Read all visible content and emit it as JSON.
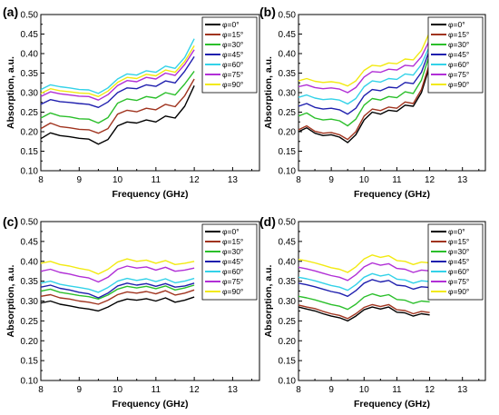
{
  "chart_data": [
    {
      "id": "panel-a",
      "panel_label": "(a)",
      "type": "line",
      "xlabel": "Frequency (GHz)",
      "ylabel": "Absorption, a.u.",
      "xlim": [
        8,
        13.7
      ],
      "ylim": [
        0.1,
        0.5
      ],
      "xticks": [
        "8",
        "9",
        "10",
        "11",
        "12",
        "13"
      ],
      "yticks": [
        "0.10",
        "0.15",
        "0.20",
        "0.25",
        "0.30",
        "0.35",
        "0.40",
        "0.45",
        "0.50"
      ],
      "legend_position": "top-right",
      "x": [
        8.0,
        8.25,
        8.5,
        8.75,
        9.0,
        9.25,
        9.5,
        9.75,
        10.0,
        10.25,
        10.5,
        10.75,
        11.0,
        11.25,
        11.5,
        11.75,
        12.0
      ],
      "series": [
        {
          "name": "φ=0°",
          "color": "#000000",
          "values": [
            0.182,
            0.197,
            0.19,
            0.187,
            0.183,
            0.181,
            0.168,
            0.18,
            0.215,
            0.225,
            0.222,
            0.23,
            0.225,
            0.24,
            0.235,
            0.265,
            0.318
          ]
        },
        {
          "name": "φ=15°",
          "color": "#a0341f",
          "values": [
            0.208,
            0.222,
            0.213,
            0.21,
            0.206,
            0.205,
            0.196,
            0.208,
            0.245,
            0.255,
            0.251,
            0.26,
            0.256,
            0.27,
            0.264,
            0.292,
            0.335
          ]
        },
        {
          "name": "φ=30°",
          "color": "#2bbf2b",
          "values": [
            0.235,
            0.248,
            0.24,
            0.238,
            0.233,
            0.232,
            0.222,
            0.236,
            0.273,
            0.284,
            0.28,
            0.29,
            0.286,
            0.3,
            0.294,
            0.322,
            0.355
          ]
        },
        {
          "name": "φ=45°",
          "color": "#1f1fae",
          "values": [
            0.27,
            0.282,
            0.277,
            0.275,
            0.272,
            0.27,
            0.262,
            0.276,
            0.3,
            0.312,
            0.31,
            0.32,
            0.316,
            0.33,
            0.325,
            0.355,
            0.392
          ]
        },
        {
          "name": "φ=60°",
          "color": "#33d2e8",
          "values": [
            0.308,
            0.32,
            0.315,
            0.312,
            0.308,
            0.307,
            0.298,
            0.312,
            0.335,
            0.348,
            0.345,
            0.356,
            0.352,
            0.368,
            0.362,
            0.39,
            0.438
          ]
        },
        {
          "name": "φ=75°",
          "color": "#b12fd6",
          "values": [
            0.29,
            0.302,
            0.297,
            0.294,
            0.291,
            0.29,
            0.281,
            0.295,
            0.318,
            0.331,
            0.328,
            0.339,
            0.335,
            0.35,
            0.344,
            0.372,
            0.41
          ]
        },
        {
          "name": "φ=90°",
          "color": "#f2ea12",
          "values": [
            0.298,
            0.31,
            0.305,
            0.302,
            0.299,
            0.298,
            0.29,
            0.304,
            0.326,
            0.339,
            0.336,
            0.347,
            0.343,
            0.358,
            0.352,
            0.38,
            0.42
          ]
        }
      ]
    },
    {
      "id": "panel-b",
      "panel_label": "(b)",
      "type": "line",
      "xlabel": "Frequency (GHz)",
      "ylabel": "Absorption, a.u.",
      "xlim": [
        8,
        13.7
      ],
      "ylim": [
        0.1,
        0.5
      ],
      "xticks": [
        "8",
        "9",
        "10",
        "11",
        "12",
        "13"
      ],
      "yticks": [
        "0.10",
        "0.15",
        "0.20",
        "0.25",
        "0.30",
        "0.35",
        "0.40",
        "0.45",
        "0.50"
      ],
      "legend_position": "top-right",
      "x": [
        8.0,
        8.25,
        8.5,
        8.75,
        9.0,
        9.25,
        9.5,
        9.75,
        10.0,
        10.25,
        10.5,
        10.75,
        11.0,
        11.25,
        11.5,
        11.75,
        12.0
      ],
      "series": [
        {
          "name": "φ=0°",
          "color": "#000000",
          "values": [
            0.2,
            0.21,
            0.196,
            0.19,
            0.192,
            0.186,
            0.172,
            0.192,
            0.23,
            0.25,
            0.245,
            0.255,
            0.252,
            0.268,
            0.265,
            0.3,
            0.368
          ]
        },
        {
          "name": "φ=15°",
          "color": "#a0341f",
          "values": [
            0.205,
            0.215,
            0.201,
            0.196,
            0.198,
            0.192,
            0.18,
            0.2,
            0.24,
            0.258,
            0.254,
            0.263,
            0.26,
            0.276,
            0.272,
            0.308,
            0.376
          ]
        },
        {
          "name": "φ=30°",
          "color": "#2bbf2b",
          "values": [
            0.24,
            0.248,
            0.235,
            0.23,
            0.232,
            0.228,
            0.215,
            0.232,
            0.268,
            0.285,
            0.281,
            0.29,
            0.287,
            0.302,
            0.298,
            0.332,
            0.398
          ]
        },
        {
          "name": "φ=45°",
          "color": "#1f1fae",
          "values": [
            0.265,
            0.272,
            0.262,
            0.258,
            0.26,
            0.256,
            0.245,
            0.26,
            0.292,
            0.308,
            0.305,
            0.314,
            0.312,
            0.326,
            0.323,
            0.352,
            0.41
          ]
        },
        {
          "name": "φ=60°",
          "color": "#33d2e8",
          "values": [
            0.288,
            0.294,
            0.286,
            0.282,
            0.284,
            0.281,
            0.271,
            0.285,
            0.315,
            0.33,
            0.327,
            0.336,
            0.334,
            0.348,
            0.345,
            0.372,
            0.42
          ]
        },
        {
          "name": "φ=75°",
          "color": "#b12fd6",
          "values": [
            0.315,
            0.32,
            0.313,
            0.31,
            0.312,
            0.309,
            0.3,
            0.313,
            0.34,
            0.354,
            0.352,
            0.36,
            0.358,
            0.37,
            0.368,
            0.392,
            0.435
          ]
        },
        {
          "name": "φ=90°",
          "color": "#f2ea12",
          "values": [
            0.33,
            0.336,
            0.329,
            0.326,
            0.328,
            0.325,
            0.317,
            0.33,
            0.357,
            0.37,
            0.368,
            0.376,
            0.374,
            0.386,
            0.384,
            0.408,
            0.455
          ]
        }
      ]
    },
    {
      "id": "panel-c",
      "panel_label": "(c)",
      "type": "line",
      "xlabel": "Frequency (GHz)",
      "ylabel": "Absorption, a.u.",
      "xlim": [
        8,
        13.7
      ],
      "ylim": [
        0.1,
        0.5
      ],
      "xticks": [
        "8",
        "9",
        "10",
        "11",
        "12",
        "13"
      ],
      "yticks": [
        "0.10",
        "0.15",
        "0.20",
        "0.25",
        "0.30",
        "0.35",
        "0.40",
        "0.45",
        "0.50"
      ],
      "legend_position": "top-right",
      "x": [
        8.0,
        8.25,
        8.5,
        8.75,
        9.0,
        9.25,
        9.5,
        9.75,
        10.0,
        10.25,
        10.5,
        10.75,
        11.0,
        11.25,
        11.5,
        11.75,
        12.0
      ],
      "series": [
        {
          "name": "φ=0°",
          "color": "#000000",
          "values": [
            0.295,
            0.3,
            0.292,
            0.288,
            0.283,
            0.28,
            0.275,
            0.285,
            0.298,
            0.305,
            0.302,
            0.306,
            0.3,
            0.308,
            0.297,
            0.302,
            0.31
          ]
        },
        {
          "name": "φ=15°",
          "color": "#a0341f",
          "values": [
            0.312,
            0.316,
            0.308,
            0.305,
            0.3,
            0.297,
            0.292,
            0.302,
            0.316,
            0.323,
            0.32,
            0.324,
            0.318,
            0.326,
            0.315,
            0.32,
            0.328
          ]
        },
        {
          "name": "φ=30°",
          "color": "#2bbf2b",
          "values": [
            0.325,
            0.33,
            0.322,
            0.318,
            0.314,
            0.311,
            0.305,
            0.315,
            0.33,
            0.337,
            0.333,
            0.337,
            0.331,
            0.338,
            0.328,
            0.333,
            0.34
          ]
        },
        {
          "name": "φ=45°",
          "color": "#1f1fae",
          "values": [
            0.335,
            0.34,
            0.332,
            0.328,
            0.322,
            0.318,
            0.308,
            0.32,
            0.338,
            0.345,
            0.34,
            0.344,
            0.337,
            0.344,
            0.335,
            0.338,
            0.345
          ]
        },
        {
          "name": "φ=60°",
          "color": "#33d2e8",
          "values": [
            0.345,
            0.35,
            0.342,
            0.338,
            0.334,
            0.33,
            0.322,
            0.334,
            0.35,
            0.357,
            0.352,
            0.356,
            0.349,
            0.356,
            0.346,
            0.35,
            0.357
          ]
        },
        {
          "name": "φ=75°",
          "color": "#b12fd6",
          "values": [
            0.375,
            0.38,
            0.372,
            0.368,
            0.362,
            0.358,
            0.348,
            0.36,
            0.38,
            0.388,
            0.383,
            0.386,
            0.378,
            0.385,
            0.375,
            0.378,
            0.383
          ]
        },
        {
          "name": "φ=90°",
          "color": "#f2ea12",
          "values": [
            0.395,
            0.4,
            0.392,
            0.388,
            0.382,
            0.378,
            0.368,
            0.38,
            0.398,
            0.406,
            0.4,
            0.403,
            0.395,
            0.402,
            0.392,
            0.395,
            0.4
          ]
        }
      ]
    },
    {
      "id": "panel-d",
      "panel_label": "(d)",
      "type": "line",
      "xlabel": "Frequency (GHz)",
      "ylabel": "Absorption, a.u.",
      "xlim": [
        8,
        13.7
      ],
      "ylim": [
        0.1,
        0.5
      ],
      "xticks": [
        "8",
        "9",
        "10",
        "11",
        "12",
        "13"
      ],
      "yticks": [
        "0.10",
        "0.15",
        "0.20",
        "0.25",
        "0.30",
        "0.35",
        "0.40",
        "0.45",
        "0.50"
      ],
      "legend_position": "top-right",
      "x": [
        8.0,
        8.25,
        8.5,
        8.75,
        9.0,
        9.25,
        9.5,
        9.75,
        10.0,
        10.25,
        10.5,
        10.75,
        11.0,
        11.25,
        11.5,
        11.75,
        12.0
      ],
      "series": [
        {
          "name": "φ=0°",
          "color": "#000000",
          "values": [
            0.285,
            0.28,
            0.275,
            0.268,
            0.262,
            0.258,
            0.25,
            0.262,
            0.278,
            0.285,
            0.28,
            0.285,
            0.272,
            0.27,
            0.262,
            0.268,
            0.265
          ]
        },
        {
          "name": "φ=15°",
          "color": "#a0341f",
          "values": [
            0.29,
            0.285,
            0.281,
            0.274,
            0.268,
            0.264,
            0.256,
            0.268,
            0.284,
            0.291,
            0.286,
            0.291,
            0.278,
            0.276,
            0.268,
            0.274,
            0.271
          ]
        },
        {
          "name": "φ=30°",
          "color": "#2bbf2b",
          "values": [
            0.312,
            0.308,
            0.303,
            0.297,
            0.291,
            0.287,
            0.279,
            0.292,
            0.31,
            0.318,
            0.312,
            0.316,
            0.304,
            0.302,
            0.294,
            0.3,
            0.298
          ]
        },
        {
          "name": "φ=45°",
          "color": "#1f1fae",
          "values": [
            0.345,
            0.341,
            0.336,
            0.33,
            0.324,
            0.32,
            0.312,
            0.326,
            0.345,
            0.354,
            0.348,
            0.352,
            0.34,
            0.338,
            0.33,
            0.336,
            0.334
          ]
        },
        {
          "name": "φ=60°",
          "color": "#33d2e8",
          "values": [
            0.36,
            0.356,
            0.351,
            0.345,
            0.339,
            0.335,
            0.327,
            0.341,
            0.36,
            0.369,
            0.363,
            0.367,
            0.355,
            0.353,
            0.345,
            0.351,
            0.349
          ]
        },
        {
          "name": "φ=75°",
          "color": "#b12fd6",
          "values": [
            0.385,
            0.381,
            0.376,
            0.37,
            0.364,
            0.36,
            0.352,
            0.366,
            0.386,
            0.396,
            0.39,
            0.394,
            0.382,
            0.38,
            0.372,
            0.378,
            0.376
          ]
        },
        {
          "name": "φ=90°",
          "color": "#f2ea12",
          "values": [
            0.405,
            0.401,
            0.396,
            0.39,
            0.384,
            0.38,
            0.372,
            0.386,
            0.406,
            0.416,
            0.41,
            0.414,
            0.402,
            0.4,
            0.392,
            0.398,
            0.396
          ]
        }
      ]
    }
  ]
}
